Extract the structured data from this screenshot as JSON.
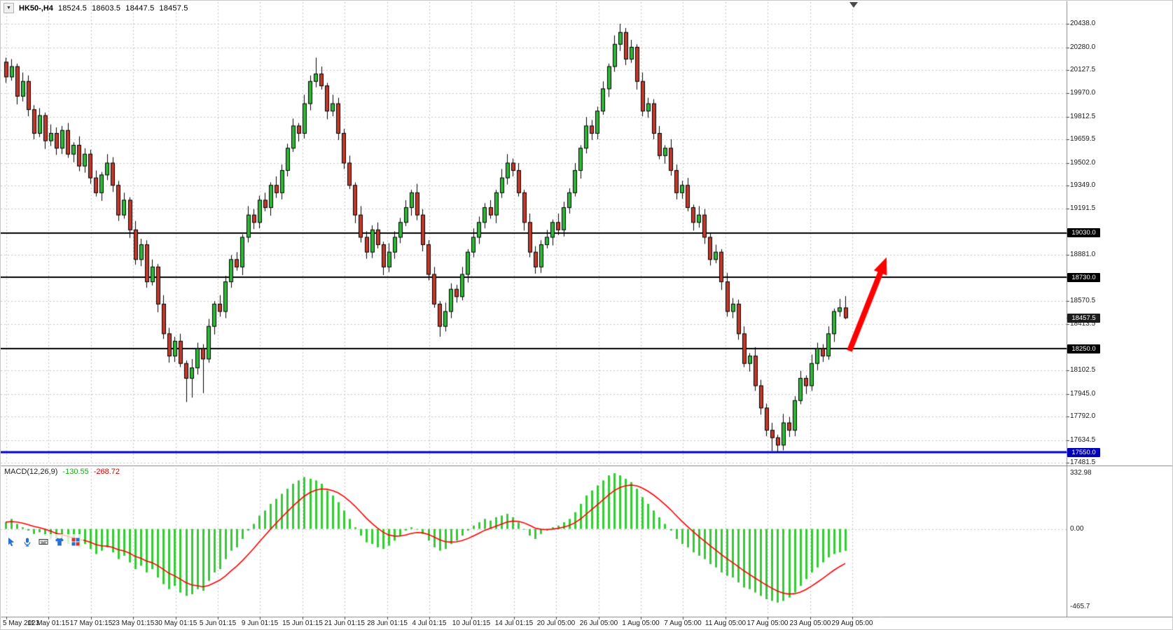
{
  "header": {
    "collapse_icon": "▼",
    "symbol_period": "HK50-,H4",
    "open": "18524.5",
    "high": "18603.5",
    "low": "18447.5",
    "close": "18457.5"
  },
  "price_axis": {
    "ticks": [
      {
        "label": "20438.0",
        "price": 20438.0
      },
      {
        "label": "20280.0",
        "price": 20280.0
      },
      {
        "label": "20127.5",
        "price": 20127.5
      },
      {
        "label": "19970.0",
        "price": 19970.0
      },
      {
        "label": "19812.5",
        "price": 19812.5
      },
      {
        "label": "19659.5",
        "price": 19659.5
      },
      {
        "label": "19502.0",
        "price": 19502.0
      },
      {
        "label": "19349.0",
        "price": 19349.0
      },
      {
        "label": "19191.5",
        "price": 19191.5
      },
      {
        "label": "18881.0",
        "price": 18881.0
      },
      {
        "label": "18570.5",
        "price": 18570.5
      },
      {
        "label": "18413.5",
        "price": 18413.5
      },
      {
        "label": "18102.5",
        "price": 18102.5
      },
      {
        "label": "17945.0",
        "price": 17945.0
      },
      {
        "label": "17792.0",
        "price": 17792.0
      },
      {
        "label": "17634.5",
        "price": 17634.5
      },
      {
        "label": "17481.5",
        "price": 17481.5
      }
    ],
    "badges": [
      {
        "label": "19030.0",
        "price": 19030.0,
        "bg": "#000000"
      },
      {
        "label": "18730.0",
        "price": 18730.0,
        "bg": "#000000"
      },
      {
        "label": "18457.5",
        "price": 18457.5,
        "bg": "#1c1c1c"
      },
      {
        "label": "18250.0",
        "price": 18250.0,
        "bg": "#000000"
      },
      {
        "label": "17550.0",
        "price": 17550.0,
        "bg": "#0000b8"
      }
    ]
  },
  "time_axis": {
    "labels": [
      "5 May 2023",
      "11 May 01:15",
      "17 May 01:15",
      "23 May 01:15",
      "30 May 01:15",
      "5 Jun 01:15",
      "9 Jun 01:15",
      "15 Jun 01:15",
      "21 Jun 01:15",
      "28 Jun 01:15",
      "4 Jul 01:15",
      "10 Jul 01:15",
      "14 Jul 01:15",
      "20 Jul 05:00",
      "26 Jul 05:00",
      "1 Aug 05:00",
      "7 Aug 05:00",
      "11 Aug 05:00",
      "17 Aug 05:00",
      "23 Aug 05:00",
      "29 Aug 05:00"
    ]
  },
  "macd": {
    "label": "MACD(12,26,9)",
    "value_main": "-130.55",
    "value_signal": "-268.72",
    "axis": {
      "max_label": "332.98",
      "max": 332.98,
      "zero_label": "0.00",
      "min_label": "-465.7",
      "min": -465.7
    }
  },
  "toolbar": {
    "icons": [
      "draw-cursor",
      "microphone",
      "keyboard",
      "tshirt",
      "layout-grid"
    ]
  },
  "colors": {
    "up": "#2eb837",
    "down": "#c0392b",
    "candle_border": "#000000",
    "wick": "#000000",
    "grid": "#c6c6c6",
    "hist": "#33cc33",
    "signal": "#ff0000",
    "sr_line": "#000000",
    "blue_line": "#0000c8",
    "arrow": "#ff0000",
    "separator": "#8a8a8a",
    "axis_tick": "#444444"
  },
  "chart_data": {
    "type": "candlestick",
    "title": "HK50-,H4",
    "timeframe": "H4",
    "x_range": [
      "5 May 2023",
      "29 Aug 2023"
    ],
    "ylim": [
      17481.5,
      20438.0
    ],
    "legend_position": "none",
    "grid": "dashed",
    "current_price": 18457.5,
    "last_candle": {
      "open": 18524.5,
      "high": 18603.5,
      "low": 18447.5,
      "close": 18457.5
    },
    "horizontal_lines": [
      {
        "price": 19030.0,
        "color": "#000000",
        "width": 2,
        "role": "resistance"
      },
      {
        "price": 18730.0,
        "color": "#000000",
        "width": 2,
        "role": "resistance"
      },
      {
        "price": 18250.0,
        "color": "#000000",
        "width": 2,
        "role": "support"
      },
      {
        "price": 17550.0,
        "color": "#0000c8",
        "width": 3,
        "role": "support"
      }
    ],
    "annotations": [
      {
        "type": "arrow",
        "from_price": 18235,
        "to_price": 18830,
        "color": "#ff0000"
      }
    ],
    "candles": [
      [
        20180,
        20210,
        20040,
        20080
      ],
      [
        20080,
        20200,
        20055,
        20150
      ],
      [
        20150,
        20170,
        19895,
        19950
      ],
      [
        19950,
        20110,
        19915,
        20050
      ],
      [
        20050,
        20090,
        19815,
        19860
      ],
      [
        19860,
        19890,
        19660,
        19700
      ],
      [
        19700,
        19870,
        19675,
        19820
      ],
      [
        19820,
        19840,
        19595,
        19650
      ],
      [
        19650,
        19760,
        19615,
        19700
      ],
      [
        19700,
        19740,
        19555,
        19600
      ],
      [
        19600,
        19750,
        19560,
        19720
      ],
      [
        19720,
        19770,
        19535,
        19560
      ],
      [
        19560,
        19640,
        19505,
        19620
      ],
      [
        19620,
        19680,
        19445,
        19480
      ],
      [
        19480,
        19600,
        19435,
        19560
      ],
      [
        19560,
        19590,
        19360,
        19400
      ],
      [
        19400,
        19450,
        19275,
        19300
      ],
      [
        19300,
        19440,
        19245,
        19420
      ],
      [
        19420,
        19560,
        19385,
        19500
      ],
      [
        19500,
        19540,
        19305,
        19350
      ],
      [
        19350,
        19380,
        19110,
        19150
      ],
      [
        19150,
        19300,
        19125,
        19250
      ],
      [
        19250,
        19270,
        18995,
        19050
      ],
      [
        19050,
        19110,
        18815,
        18850
      ],
      [
        18850,
        18990,
        18805,
        18950
      ],
      [
        18950,
        18980,
        18660,
        18700
      ],
      [
        18700,
        18850,
        18675,
        18800
      ],
      [
        18800,
        18820,
        18495,
        18550
      ],
      [
        18550,
        18610,
        18315,
        18350
      ],
      [
        18350,
        18390,
        18155,
        18200
      ],
      [
        18200,
        18330,
        18160,
        18300
      ],
      [
        18300,
        18350,
        18125,
        18150
      ],
      [
        18150,
        18170,
        17890,
        18050
      ],
      [
        18050,
        18180,
        17920,
        18120
      ],
      [
        18120,
        18290,
        18075,
        18250
      ],
      [
        18250,
        18280,
        17950,
        18180
      ],
      [
        18180,
        18450,
        18155,
        18400
      ],
      [
        18400,
        18570,
        18345,
        18550
      ],
      [
        18550,
        18610,
        18465,
        18500
      ],
      [
        18500,
        18740,
        18455,
        18700
      ],
      [
        18700,
        18880,
        18660,
        18850
      ],
      [
        18850,
        18900,
        18775,
        18800
      ],
      [
        18800,
        19020,
        18745,
        19000
      ],
      [
        19000,
        19210,
        18965,
        19150
      ],
      [
        19150,
        19190,
        19055,
        19100
      ],
      [
        19100,
        19280,
        19060,
        19250
      ],
      [
        19250,
        19300,
        19175,
        19200
      ],
      [
        19200,
        19370,
        19145,
        19350
      ],
      [
        19350,
        19410,
        19265,
        19300
      ],
      [
        19300,
        19490,
        19255,
        19450
      ],
      [
        19450,
        19630,
        19410,
        19600
      ],
      [
        19600,
        19800,
        19575,
        19750
      ],
      [
        19750,
        19770,
        19645,
        19700
      ],
      [
        19700,
        19960,
        19665,
        19900
      ],
      [
        19900,
        20090,
        19855,
        20050
      ],
      [
        20050,
        20210,
        20010,
        20100
      ],
      [
        20100,
        20150,
        19995,
        20020
      ],
      [
        20020,
        20040,
        19795,
        19850
      ],
      [
        19850,
        19960,
        19815,
        19900
      ],
      [
        19900,
        19940,
        19655,
        19700
      ],
      [
        19700,
        19730,
        19460,
        19500
      ],
      [
        19500,
        19550,
        19325,
        19350
      ],
      [
        19350,
        19370,
        19095,
        19150
      ],
      [
        19150,
        19210,
        18965,
        19000
      ],
      [
        19000,
        19040,
        18855,
        18900
      ],
      [
        18900,
        19080,
        18860,
        19050
      ],
      [
        19050,
        19100,
        18925,
        18950
      ],
      [
        18950,
        18970,
        18745,
        18800
      ],
      [
        18800,
        18960,
        18765,
        18900
      ],
      [
        18900,
        19040,
        18855,
        19000
      ],
      [
        19000,
        19130,
        18960,
        19100
      ],
      [
        19100,
        19250,
        19075,
        19200
      ],
      [
        19200,
        19320,
        19145,
        19300
      ],
      [
        19300,
        19360,
        19115,
        19150
      ],
      [
        19150,
        19190,
        18905,
        18950
      ],
      [
        18950,
        18980,
        18710,
        18750
      ],
      [
        18750,
        18800,
        18525,
        18550
      ],
      [
        18550,
        18570,
        18330,
        18400
      ],
      [
        18400,
        18560,
        18365,
        18500
      ],
      [
        18500,
        18690,
        18455,
        18650
      ],
      [
        18650,
        18680,
        18560,
        18600
      ],
      [
        18600,
        18800,
        18575,
        18750
      ],
      [
        18750,
        18920,
        18695,
        18900
      ],
      [
        18900,
        19060,
        18865,
        19000
      ],
      [
        19000,
        19140,
        18955,
        19100
      ],
      [
        19100,
        19230,
        19060,
        19200
      ],
      [
        19200,
        19250,
        19125,
        19150
      ],
      [
        19150,
        19320,
        19095,
        19300
      ],
      [
        19300,
        19460,
        19265,
        19400
      ],
      [
        19400,
        19560,
        19355,
        19500
      ],
      [
        19500,
        19530,
        19410,
        19450
      ],
      [
        19450,
        19500,
        19275,
        19300
      ],
      [
        19300,
        19320,
        19045,
        19100
      ],
      [
        19100,
        19160,
        18865,
        18900
      ],
      [
        18900,
        18940,
        18755,
        18800
      ],
      [
        18800,
        18980,
        18760,
        18950
      ],
      [
        18950,
        19050,
        18925,
        19000
      ],
      [
        19000,
        19120,
        18945,
        19100
      ],
      [
        19100,
        19160,
        19015,
        19050
      ],
      [
        19050,
        19240,
        19005,
        19200
      ],
      [
        19200,
        19330,
        19160,
        19300
      ],
      [
        19300,
        19500,
        19275,
        19450
      ],
      [
        19450,
        19620,
        19395,
        19600
      ],
      [
        19600,
        19810,
        19565,
        19750
      ],
      [
        19750,
        19790,
        19655,
        19700
      ],
      [
        19700,
        19880,
        19660,
        19850
      ],
      [
        19850,
        20050,
        19825,
        20000
      ],
      [
        20000,
        20170,
        19945,
        20150
      ],
      [
        20150,
        20360,
        20115,
        20300
      ],
      [
        20300,
        20438,
        20255,
        20380
      ],
      [
        20380,
        20410,
        20160,
        20200
      ],
      [
        20200,
        20330,
        20175,
        20280
      ],
      [
        20280,
        20300,
        19995,
        20050
      ],
      [
        20050,
        20110,
        19815,
        19850
      ],
      [
        19850,
        19940,
        19805,
        19900
      ],
      [
        19900,
        19930,
        19660,
        19700
      ],
      [
        19700,
        19750,
        19525,
        19550
      ],
      [
        19550,
        19620,
        19495,
        19600
      ],
      [
        19600,
        19660,
        19415,
        19450
      ],
      [
        19450,
        19490,
        19255,
        19300
      ],
      [
        19300,
        19380,
        19260,
        19350
      ],
      [
        19350,
        19400,
        19175,
        19200
      ],
      [
        19200,
        19220,
        19045,
        19100
      ],
      [
        19100,
        19210,
        19065,
        19150
      ],
      [
        19150,
        19190,
        18955,
        19000
      ],
      [
        19000,
        19030,
        18810,
        18850
      ],
      [
        18850,
        18950,
        18825,
        18900
      ],
      [
        18900,
        18920,
        18645,
        18700
      ],
      [
        18700,
        18760,
        18465,
        18500
      ],
      [
        18500,
        18590,
        18455,
        18550
      ],
      [
        18550,
        18580,
        18310,
        18350
      ],
      [
        18350,
        18400,
        18125,
        18150
      ],
      [
        18150,
        18220,
        18095,
        18200
      ],
      [
        18200,
        18260,
        17965,
        18000
      ],
      [
        18000,
        18040,
        17805,
        17850
      ],
      [
        17850,
        17880,
        17660,
        17700
      ],
      [
        17700,
        17750,
        17560,
        17650
      ],
      [
        17650,
        17670,
        17550,
        17600
      ],
      [
        17600,
        17810,
        17565,
        17750
      ],
      [
        17750,
        17790,
        17655,
        17700
      ],
      [
        17700,
        17930,
        17660,
        17900
      ],
      [
        17900,
        18100,
        17875,
        18050
      ],
      [
        18050,
        18070,
        17945,
        18000
      ],
      [
        18000,
        18210,
        17965,
        18150
      ],
      [
        18150,
        18290,
        18105,
        18250
      ],
      [
        18250,
        18280,
        18160,
        18200
      ],
      [
        18200,
        18400,
        18175,
        18350
      ],
      [
        18350,
        18520,
        18295,
        18500
      ],
      [
        18500,
        18585,
        18465,
        18525
      ],
      [
        18524.5,
        18603.5,
        18447.5,
        18457.5
      ]
    ],
    "macd_histogram": [
      40,
      60,
      30,
      10,
      -10,
      -30,
      -20,
      -40,
      -60,
      -80,
      -60,
      -90,
      -80,
      -110,
      -90,
      -120,
      -150,
      -130,
      -110,
      -140,
      -180,
      -160,
      -200,
      -240,
      -220,
      -260,
      -240,
      -290,
      -330,
      -360,
      -340,
      -380,
      -400,
      -390,
      -360,
      -370,
      -310,
      -260,
      -240,
      -180,
      -130,
      -110,
      -60,
      -10,
      30,
      80,
      110,
      150,
      180,
      210,
      240,
      270,
      290,
      310,
      300,
      290,
      270,
      230,
      200,
      160,
      110,
      60,
      10,
      -40,
      -80,
      -90,
      -110,
      -120,
      -100,
      -70,
      -40,
      -10,
      10,
      0,
      -30,
      -70,
      -110,
      -130,
      -120,
      -90,
      -70,
      -40,
      -10,
      20,
      40,
      60,
      50,
      70,
      80,
      90,
      70,
      40,
      0,
      -40,
      -60,
      -30,
      -10,
      10,
      20,
      40,
      60,
      100,
      150,
      200,
      230,
      260,
      290,
      320,
      333,
      320,
      300,
      280,
      240,
      190,
      150,
      110,
      70,
      30,
      -10,
      -60,
      -90,
      -110,
      -140,
      -160,
      -180,
      -210,
      -230,
      -260,
      -280,
      -290,
      -320,
      -350,
      -360,
      -380,
      -400,
      -420,
      -430,
      -440,
      -430,
      -410,
      -380,
      -340,
      -300,
      -260,
      -230,
      -200,
      -170,
      -150,
      -140,
      -130.55
    ],
    "macd_signal_period": 9,
    "macd_last_values": {
      "main": -130.55,
      "signal": -268.72
    },
    "macd_axis_range": [
      -465.7,
      332.98
    ]
  }
}
